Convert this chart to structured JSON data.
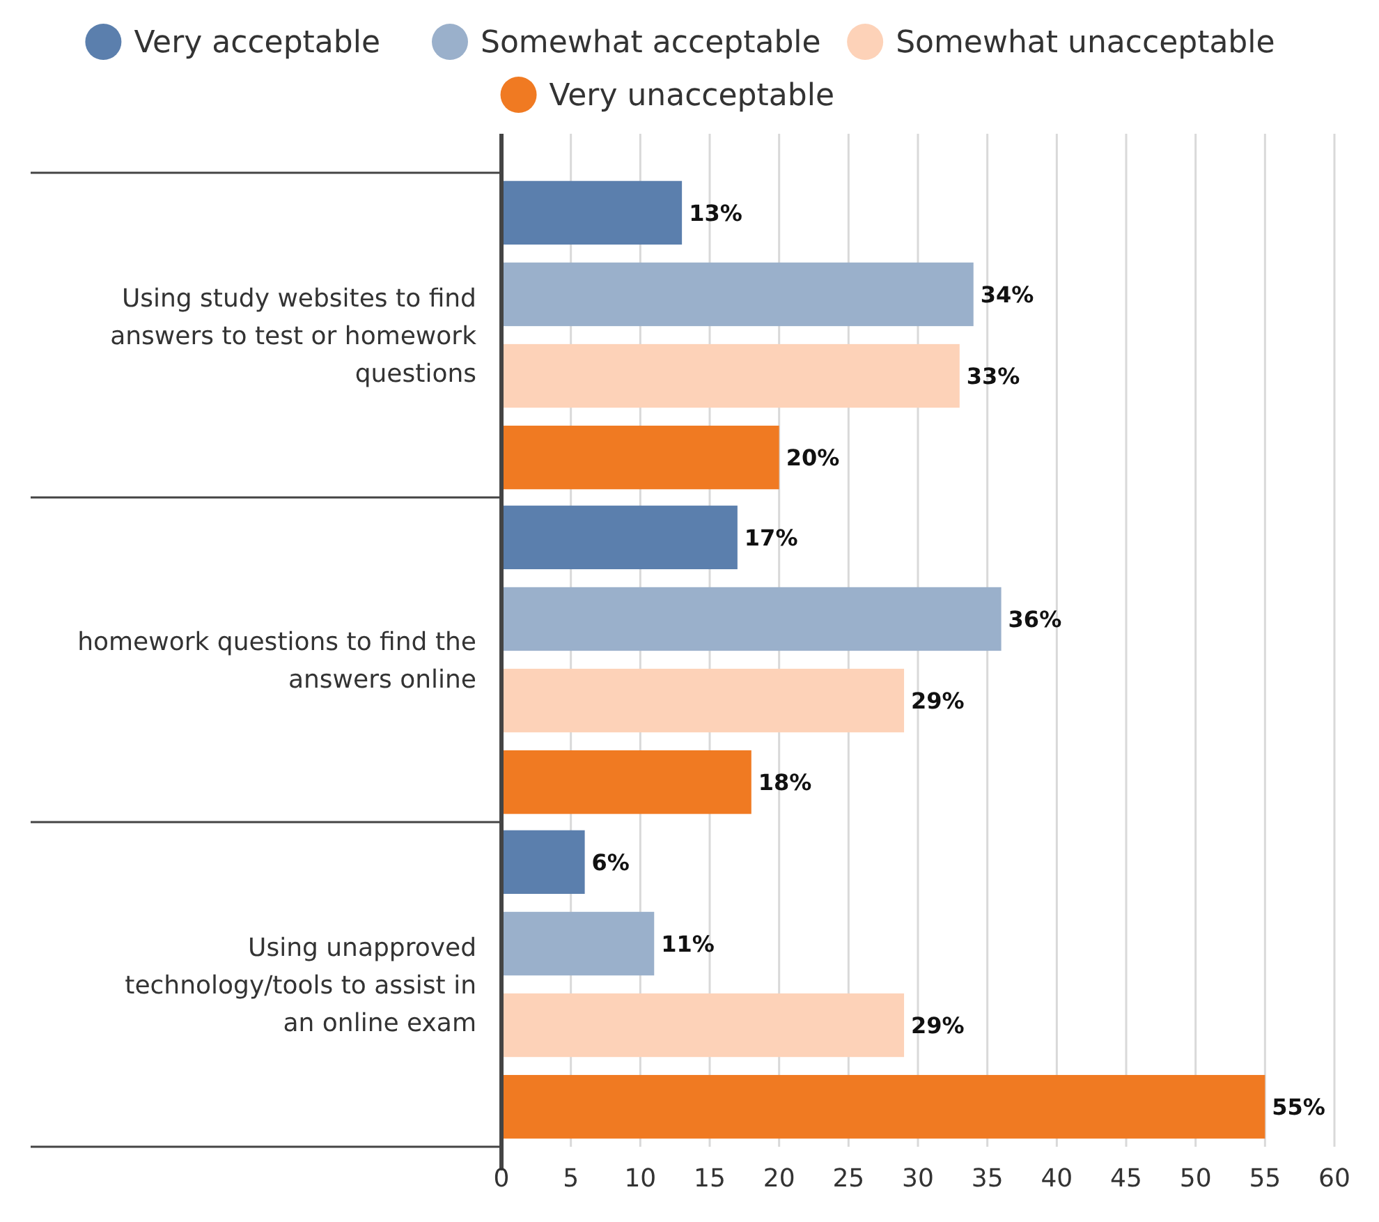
{
  "chart_data": {
    "type": "bar",
    "orientation": "horizontal",
    "categories": [
      "Using study websites to find answers to test or homework questions",
      "homework questions to find the answers online",
      "Using unapproved technology/tools to assist in an online exam"
    ],
    "series": [
      {
        "name": "Very acceptable",
        "color": "#5b7fad",
        "values": [
          13,
          17,
          6
        ],
        "value_labels": [
          "13%",
          "17%",
          "6%"
        ]
      },
      {
        "name": "Somewhat acceptable",
        "color": "#9ab0cb",
        "values": [
          34,
          36,
          11
        ],
        "value_labels": [
          "34%",
          "36%",
          "11%"
        ]
      },
      {
        "name": "Somewhat unacceptable",
        "color": "#fdd2b8",
        "values": [
          33,
          29,
          29
        ],
        "value_labels": [
          "33%",
          "29%",
          "29%"
        ]
      },
      {
        "name": "Very unacceptable",
        "color": "#f07a22",
        "values": [
          20,
          18,
          55
        ],
        "value_labels": [
          "20%",
          "18%",
          "55%"
        ]
      }
    ],
    "xlim": [
      0,
      60
    ],
    "xticks": [
      0,
      5,
      10,
      15,
      20,
      25,
      30,
      35,
      40,
      45,
      50,
      55,
      60
    ],
    "grid": "x",
    "legend": "top"
  }
}
